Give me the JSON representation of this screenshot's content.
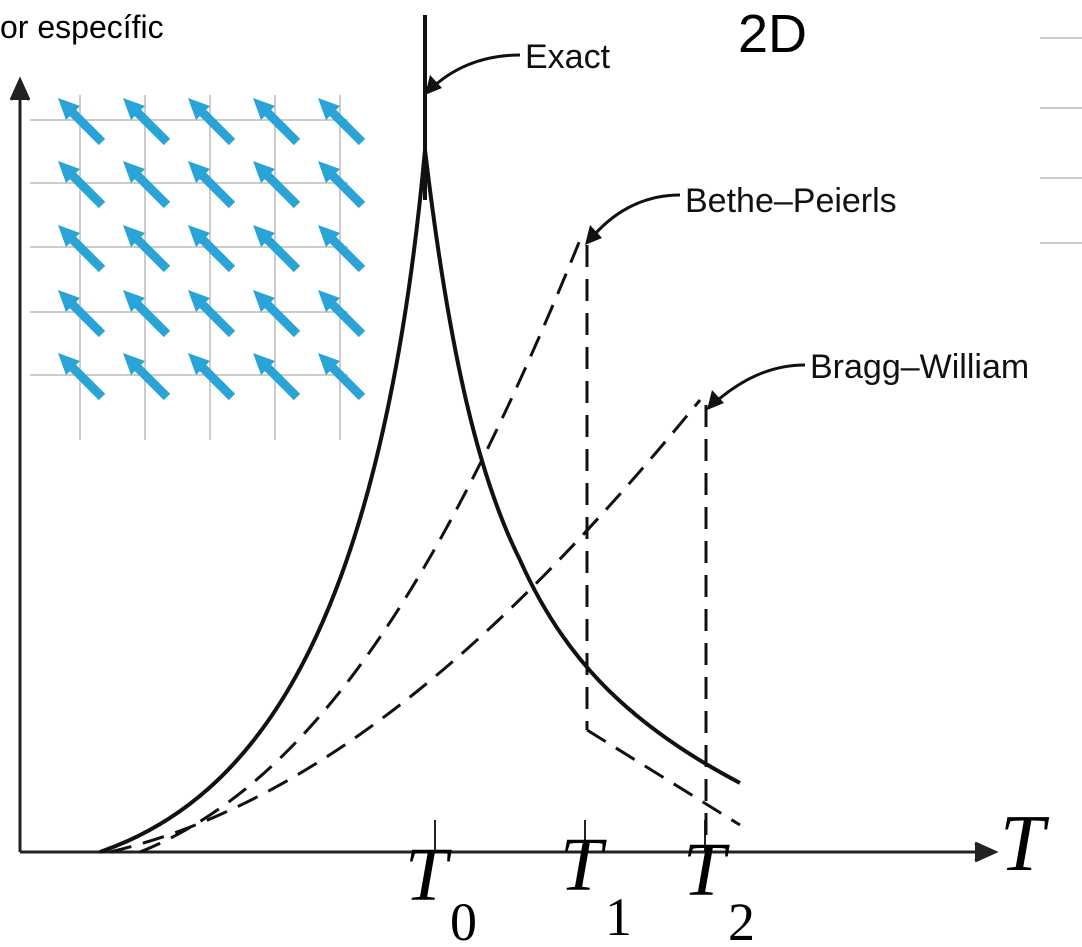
{
  "header": {
    "partial_title": "or específic",
    "dimension": "2D"
  },
  "curves": {
    "exact": "Exact",
    "bethe": "Bethe–Peierls",
    "bragg": "Bragg–William"
  },
  "axis": {
    "x_label": "T",
    "ticks": [
      {
        "main": "T",
        "sub": "0"
      },
      {
        "main": "T",
        "sub": "1"
      },
      {
        "main": "T",
        "sub": "2"
      }
    ]
  }
}
